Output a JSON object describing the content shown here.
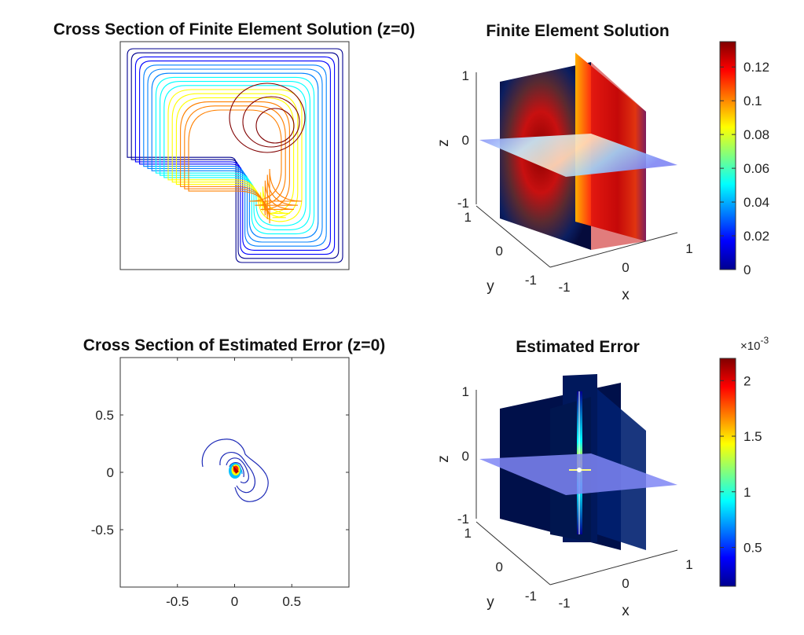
{
  "colors": {
    "colormap": [
      "#00008f",
      "#0000ff",
      "#0080ff",
      "#00ffff",
      "#80ff80",
      "#ffff00",
      "#ff8000",
      "#ff0000",
      "#800000"
    ],
    "axes": "#333333",
    "slice_dark": "#00104a",
    "plane": "#7f86f4"
  },
  "chart_data": [
    {
      "id": "contour-solution",
      "type": "contour",
      "title": "Cross Section of Finite Element Solution (z=0)",
      "xlabel": "",
      "ylabel": "",
      "domain": "L-shaped",
      "levels": 22,
      "max_value": 0.13
    },
    {
      "id": "slice-solution",
      "type": "slice3d",
      "title": "Finite Element Solution",
      "xlabel": "x",
      "ylabel": "y",
      "zlabel": "z",
      "xticks": [
        "-1",
        "0",
        "1"
      ],
      "yticks": [
        "-1",
        "0",
        "1"
      ],
      "zticks": [
        "-1",
        "0",
        "1"
      ],
      "colorbar": {
        "min": 0,
        "max": 0.135,
        "ticks": [
          "0",
          "0.02",
          "0.04",
          "0.06",
          "0.08",
          "0.1",
          "0.12"
        ],
        "tick_values": [
          0,
          0.02,
          0.04,
          0.06,
          0.08,
          0.1,
          0.12
        ],
        "exponent_label": ""
      }
    },
    {
      "id": "contour-error",
      "type": "contour",
      "title": "Cross Section of Estimated Error (z=0)",
      "xlabel": "",
      "ylabel": "",
      "xticks": [
        "-0.5",
        "0",
        "0.5"
      ],
      "xtick_values": [
        -0.5,
        0,
        0.5
      ],
      "yticks": [
        "0.5",
        "0",
        "-0.5"
      ],
      "ytick_values": [
        0.5,
        0,
        -0.5
      ],
      "xlim": [
        -1,
        1
      ],
      "ylim": [
        -1,
        1
      ],
      "peak": [
        0.03,
        0.0
      ]
    },
    {
      "id": "slice-error",
      "type": "slice3d",
      "title": "Estimated Error",
      "xlabel": "x",
      "ylabel": "y",
      "zlabel": "z",
      "xticks": [
        "-1",
        "0",
        "1"
      ],
      "yticks": [
        "-1",
        "0",
        "1"
      ],
      "zticks": [
        "-1",
        "0",
        "1"
      ],
      "colorbar": {
        "min": 0.15,
        "max": 2.2,
        "ticks": [
          "0.5",
          "1",
          "1.5",
          "2"
        ],
        "tick_values": [
          0.5,
          1,
          1.5,
          2
        ],
        "exponent_label": "×10",
        "exponent_power": "-3"
      }
    }
  ]
}
